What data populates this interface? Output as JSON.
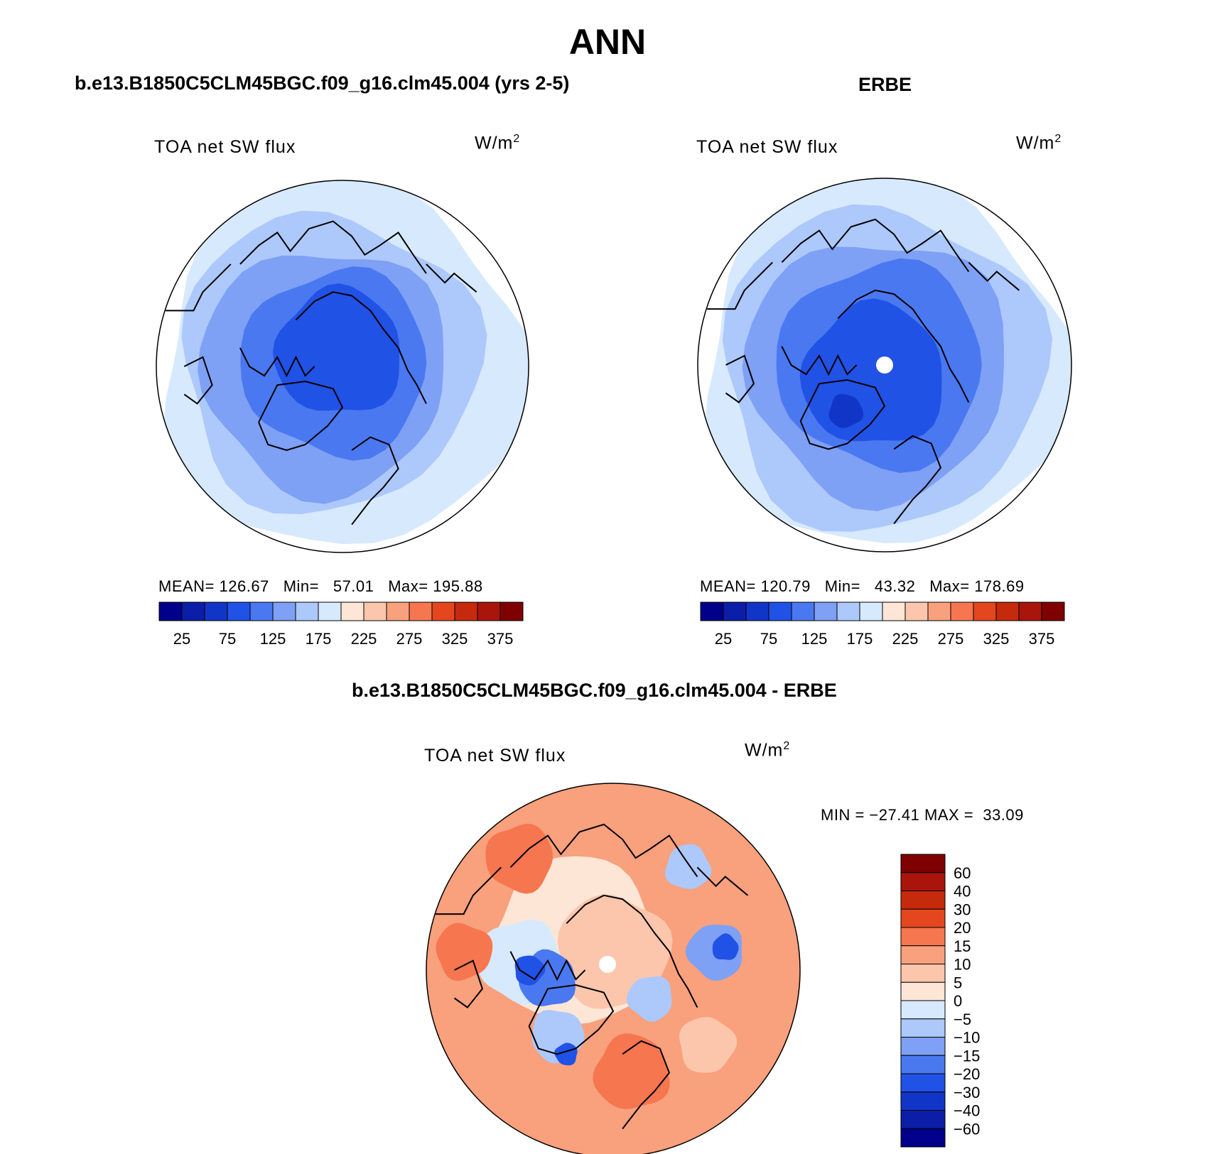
{
  "title": "ANN",
  "panels": [
    {
      "id": "model",
      "header": "b.e13.B1850C5CLM45BGC.f09_g16.clm45.004 (yrs 2-5)",
      "variable": "TOA net SW flux",
      "units": "W/m",
      "units_sup": "2",
      "stats": {
        "mean_label": "MEAN=",
        "mean": "126.67",
        "min_label": "Min=",
        "min": "57.01",
        "max_label": "Max=",
        "max": "195.88"
      },
      "fields": [
        {
          "level": 175,
          "shift": [
            0,
            0
          ],
          "scale": 0.985
        },
        {
          "level": 150,
          "shift": [
            -20,
            -5
          ],
          "scale": 0.8
        },
        {
          "level": 125,
          "shift": [
            -25,
            5
          ],
          "scale": 0.66
        },
        {
          "level": 100,
          "shift": [
            -10,
            -5
          ],
          "scale": 0.5
        },
        {
          "level": 75,
          "shift": [
            -5,
            -20
          ],
          "scale": 0.34
        }
      ]
    },
    {
      "id": "obs",
      "header": "ERBE",
      "variable": "TOA net SW flux",
      "units": "W/m",
      "units_sup": "2",
      "stats": {
        "mean_label": "MEAN=",
        "mean": "120.79",
        "min_label": "Min=",
        "min": "43.32",
        "max_label": "Max=",
        "max": "178.69"
      },
      "fields": [
        {
          "level": 175,
          "shift": [
            0,
            0
          ],
          "scale": 0.985
        },
        {
          "level": 150,
          "shift": [
            -5,
            5
          ],
          "scale": 0.86
        },
        {
          "level": 125,
          "shift": [
            -10,
            5
          ],
          "scale": 0.7
        },
        {
          "level": 100,
          "shift": [
            -5,
            0
          ],
          "scale": 0.55
        },
        {
          "level": 75,
          "shift": [
            -15,
            15
          ],
          "scale": 0.38
        },
        {
          "level": 50,
          "shift": [
            -55,
            65
          ],
          "scale": 0.09
        }
      ]
    }
  ],
  "abs_colorbar": {
    "colors": [
      "#00008b",
      "#0a1ea8",
      "#1136c7",
      "#2152e6",
      "#4a78f0",
      "#7ea0f5",
      "#adc8fb",
      "#d7e9fd",
      "#fde6d6",
      "#fcc6ac",
      "#f9a07d",
      "#f67650",
      "#e4471e",
      "#c52a0d",
      "#a9150b",
      "#7e0000"
    ],
    "ticks": [
      "25",
      "75",
      "125",
      "175",
      "225",
      "275",
      "325",
      "375"
    ]
  },
  "diff": {
    "header": "b.e13.B1850C5CLM45BGC.f09_g16.clm45.004 - ERBE",
    "variable": "TOA net SW flux",
    "units": "W/m",
    "units_sup": "2",
    "stats": {
      "min_label": "MIN =",
      "min": "−27.41",
      "max_label": "MAX =",
      "max": "33.09"
    },
    "colors": [
      "#00008b",
      "#0a1ea8",
      "#1136c7",
      "#2152e6",
      "#4a78f0",
      "#7ea0f5",
      "#adc8fb",
      "#d7e9fd",
      "#fde6d6",
      "#fcc6ac",
      "#f9a07d",
      "#f67650",
      "#e4471e",
      "#c52a0d",
      "#a9150b",
      "#7e0000"
    ],
    "ticks": [
      "60",
      "40",
      "30",
      "20",
      "15",
      "10",
      "5",
      "0",
      "−5",
      "−10",
      "−15",
      "−20",
      "−30",
      "−40",
      "−60"
    ]
  }
}
